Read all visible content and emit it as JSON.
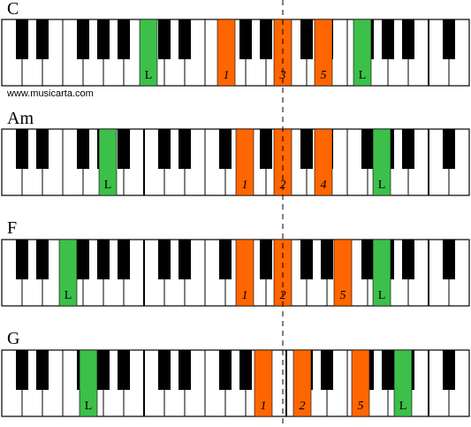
{
  "watermark": "www.musicarta.com",
  "chords": [
    {
      "name": "C",
      "keys": [
        {
          "label": "L",
          "color": "#3cc04a"
        },
        {
          "label": "1",
          "color": "#ff6600"
        },
        {
          "label": "3",
          "color": "#ff6600"
        },
        {
          "label": "5",
          "color": "#ff6600"
        },
        {
          "label": "L",
          "color": "#3cc04a"
        }
      ]
    },
    {
      "name": "Am",
      "keys": [
        {
          "label": "L",
          "color": "#3cc04a"
        },
        {
          "label": "1",
          "color": "#ff6600"
        },
        {
          "label": "2",
          "color": "#ff6600"
        },
        {
          "label": "4",
          "color": "#ff6600"
        },
        {
          "label": "L",
          "color": "#3cc04a"
        }
      ]
    },
    {
      "name": "F",
      "keys": [
        {
          "label": "L",
          "color": "#3cc04a"
        },
        {
          "label": "1",
          "color": "#ff6600"
        },
        {
          "label": "2",
          "color": "#ff6600"
        },
        {
          "label": "5",
          "color": "#ff6600"
        },
        {
          "label": "L",
          "color": "#3cc04a"
        }
      ]
    },
    {
      "name": "G",
      "keys": [
        {
          "label": "L",
          "color": "#3cc04a"
        },
        {
          "label": "1",
          "color": "#ff6600"
        },
        {
          "label": "2",
          "color": "#ff6600"
        },
        {
          "label": "5",
          "color": "#ff6600"
        },
        {
          "label": "L",
          "color": "#3cc04a"
        }
      ]
    }
  ]
}
